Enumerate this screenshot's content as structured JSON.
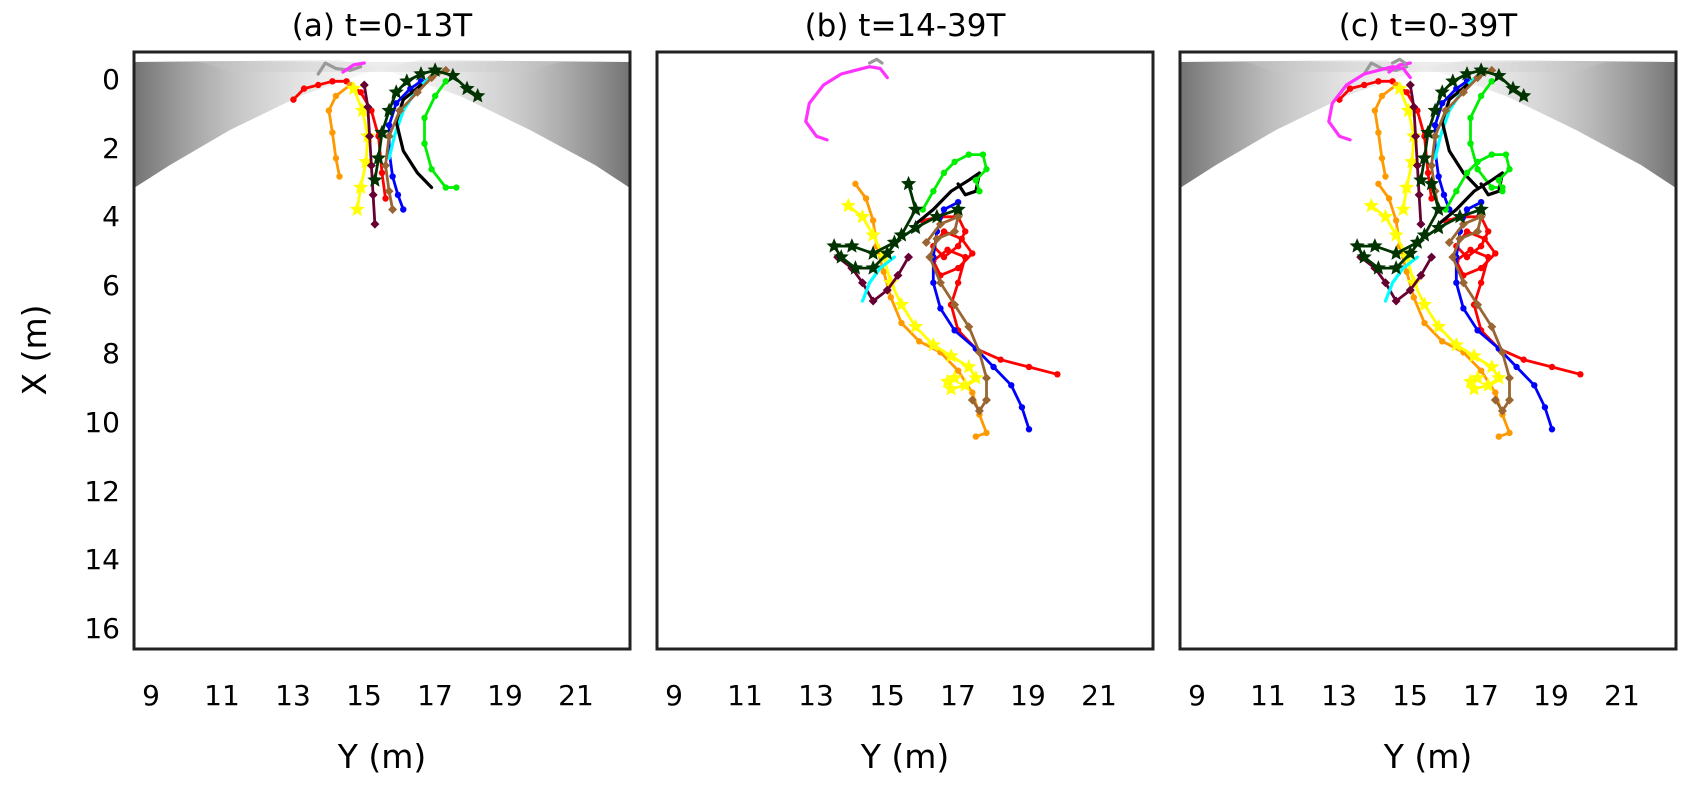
{
  "chart_data": [
    {
      "type": "line",
      "title": "(a) t=0-13T",
      "xlabel": "Y (m)",
      "ylabel": "X (m)",
      "xlim": [
        8.5,
        22.5
      ],
      "ylim": [
        16,
        -0.3
      ],
      "y_inverted": true,
      "xticks": [
        "9",
        "11",
        "13",
        "15",
        "17",
        "19",
        "21"
      ],
      "yticks": [
        "0",
        "2",
        "4",
        "6",
        "8",
        "10",
        "12",
        "14",
        "16"
      ],
      "background": "gray-scale heat map band near X=0-2 m",
      "grid": false,
      "series": [
        {
          "color": "#999999",
          "marker": "none",
          "points": [
            [
              13.7,
              0.3
            ],
            [
              13.9,
              0.0
            ],
            [
              14.2,
              0.15
            ],
            [
              14.6,
              0.2
            ],
            [
              14.9,
              0.1
            ]
          ]
        },
        {
          "color": "#ff33ff",
          "marker": "none",
          "points": [
            [
              14.4,
              0.25
            ],
            [
              14.7,
              0.05
            ],
            [
              15.0,
              0.0
            ]
          ]
        },
        {
          "color": "#ff0000",
          "marker": "circle",
          "points": [
            [
              13.0,
              1.0
            ],
            [
              13.3,
              0.7
            ],
            [
              13.7,
              0.6
            ],
            [
              14.1,
              0.5
            ],
            [
              14.5,
              0.5
            ],
            [
              14.9,
              0.8
            ],
            [
              15.2,
              1.3
            ],
            [
              15.4,
              2.0
            ],
            [
              15.5,
              3.0
            ],
            [
              15.6,
              3.7
            ]
          ]
        },
        {
          "color": "#ff9900",
          "marker": "circle",
          "points": [
            [
              14.6,
              0.6
            ],
            [
              14.2,
              0.9
            ],
            [
              14.0,
              1.3
            ],
            [
              14.1,
              1.9
            ],
            [
              14.2,
              2.6
            ],
            [
              14.3,
              3.1
            ]
          ]
        },
        {
          "color": "#ffff00",
          "marker": "star",
          "points": [
            [
              14.7,
              0.7
            ],
            [
              14.95,
              1.3
            ],
            [
              15.1,
              2.0
            ],
            [
              15.05,
              2.7
            ],
            [
              14.9,
              3.4
            ],
            [
              14.8,
              4.0
            ]
          ]
        },
        {
          "color": "#660033",
          "marker": "diamond",
          "points": [
            [
              15.0,
              0.6
            ],
            [
              15.1,
              1.2
            ],
            [
              15.15,
              2.0
            ],
            [
              15.2,
              2.8
            ],
            [
              15.25,
              3.6
            ],
            [
              15.3,
              4.4
            ]
          ]
        },
        {
          "color": "#0000ff",
          "marker": "circle",
          "points": [
            [
              16.6,
              0.5
            ],
            [
              16.3,
              0.7
            ],
            [
              15.9,
              1.1
            ],
            [
              15.7,
              1.7
            ],
            [
              15.7,
              2.4
            ],
            [
              15.8,
              3.1
            ],
            [
              15.95,
              3.6
            ],
            [
              16.1,
              4.0
            ]
          ]
        },
        {
          "color": "#00ffff",
          "marker": "none",
          "points": [
            [
              16.95,
              0.3
            ],
            [
              16.5,
              0.7
            ],
            [
              16.1,
              1.3
            ],
            [
              15.85,
              2.0
            ],
            [
              15.7,
              2.6
            ]
          ]
        },
        {
          "color": "#000000",
          "marker": "none",
          "points": [
            [
              16.6,
              0.6
            ],
            [
              16.1,
              1.0
            ],
            [
              15.9,
              1.6
            ],
            [
              16.1,
              2.4
            ],
            [
              16.5,
              3.0
            ],
            [
              16.9,
              3.4
            ]
          ]
        },
        {
          "color": "#996633",
          "marker": "diamond",
          "points": [
            [
              17.3,
              0.2
            ],
            [
              16.9,
              0.4
            ],
            [
              16.5,
              0.8
            ],
            [
              16.0,
              1.3
            ],
            [
              15.7,
              2.0
            ],
            [
              15.6,
              2.8
            ],
            [
              15.7,
              3.5
            ],
            [
              15.8,
              4.0
            ]
          ]
        },
        {
          "color": "#00ee00",
          "marker": "circle",
          "points": [
            [
              17.3,
              0.5
            ],
            [
              17.0,
              0.9
            ],
            [
              16.7,
              1.5
            ],
            [
              16.7,
              2.2
            ],
            [
              16.9,
              2.9
            ],
            [
              17.3,
              3.4
            ],
            [
              17.6,
              3.4
            ]
          ]
        },
        {
          "color": "#003300",
          "marker": "star",
          "points": [
            [
              18.2,
              0.9
            ],
            [
              17.9,
              0.7
            ],
            [
              17.5,
              0.35
            ],
            [
              17.0,
              0.2
            ],
            [
              16.6,
              0.3
            ],
            [
              16.2,
              0.5
            ],
            [
              15.9,
              0.8
            ],
            [
              15.7,
              1.3
            ],
            [
              15.5,
              1.9
            ],
            [
              15.4,
              2.6
            ],
            [
              15.3,
              3.2
            ]
          ]
        }
      ]
    },
    {
      "type": "line",
      "title": "(b) t=14-39T",
      "xlabel": "Y (m)",
      "ylabel": "",
      "xlim": [
        8.5,
        22.5
      ],
      "ylim": [
        16,
        -0.3
      ],
      "y_inverted": true,
      "xticks": [
        "9",
        "11",
        "13",
        "15",
        "17",
        "19",
        "21"
      ],
      "yticks": [],
      "grid": false,
      "series": [
        {
          "color": "#999999",
          "marker": "none",
          "points": [
            [
              14.85,
              0.0
            ],
            [
              14.7,
              -0.1
            ],
            [
              14.5,
              0.0
            ]
          ]
        },
        {
          "color": "#ff33ff",
          "marker": "none",
          "points": [
            [
              15.0,
              0.4
            ],
            [
              14.8,
              0.15
            ],
            [
              14.5,
              0.1
            ],
            [
              14.1,
              0.2
            ],
            [
              13.7,
              0.3
            ],
            [
              13.2,
              0.6
            ],
            [
              12.8,
              1.1
            ],
            [
              12.7,
              1.6
            ],
            [
              13.0,
              2.0
            ],
            [
              13.3,
              2.1
            ]
          ]
        },
        {
          "color": "#ff0000",
          "marker": "circle",
          "points": [
            [
              16.0,
              4.3
            ],
            [
              16.5,
              4.2
            ],
            [
              17.0,
              4.2
            ],
            [
              17.2,
              4.6
            ],
            [
              17.0,
              5.0
            ],
            [
              16.6,
              5.3
            ],
            [
              16.3,
              5.0
            ],
            [
              16.6,
              4.6
            ],
            [
              17.1,
              4.8
            ],
            [
              17.4,
              5.2
            ],
            [
              17.0,
              5.6
            ],
            [
              16.5,
              5.8
            ],
            [
              16.3,
              5.4
            ],
            [
              16.7,
              5.1
            ],
            [
              17.2,
              5.3
            ],
            [
              17.0,
              6.0
            ],
            [
              16.8,
              6.6
            ],
            [
              17.0,
              7.3
            ],
            [
              17.5,
              7.8
            ],
            [
              18.2,
              8.1
            ],
            [
              19.0,
              8.3
            ],
            [
              19.8,
              8.5
            ]
          ]
        },
        {
          "color": "#ff9900",
          "marker": "circle",
          "points": [
            [
              14.1,
              3.3
            ],
            [
              14.4,
              3.7
            ],
            [
              14.6,
              4.3
            ],
            [
              14.7,
              5.0
            ],
            [
              14.9,
              5.7
            ],
            [
              15.1,
              6.4
            ],
            [
              15.4,
              7.1
            ],
            [
              15.9,
              7.6
            ],
            [
              16.5,
              7.9
            ],
            [
              17.0,
              8.4
            ],
            [
              17.4,
              9.0
            ],
            [
              17.6,
              9.6
            ],
            [
              17.8,
              10.1
            ],
            [
              17.5,
              10.2
            ]
          ]
        },
        {
          "color": "#ffff00",
          "marker": "star",
          "points": [
            [
              13.9,
              3.9
            ],
            [
              14.3,
              4.2
            ],
            [
              14.6,
              4.7
            ],
            [
              14.9,
              5.3
            ],
            [
              15.1,
              6.0
            ],
            [
              15.4,
              6.6
            ],
            [
              15.8,
              7.2
            ],
            [
              16.3,
              7.7
            ],
            [
              16.8,
              8.0
            ],
            [
              17.3,
              8.3
            ],
            [
              17.5,
              8.6
            ],
            [
              17.2,
              8.8
            ],
            [
              16.8,
              8.9
            ],
            [
              16.7,
              8.7
            ],
            [
              16.9,
              8.6
            ]
          ]
        },
        {
          "color": "#660033",
          "marker": "diamond",
          "points": [
            [
              13.6,
              5.3
            ],
            [
              14.0,
              5.6
            ],
            [
              14.3,
              6.0
            ],
            [
              14.6,
              6.5
            ],
            [
              15.0,
              6.2
            ],
            [
              15.3,
              5.8
            ],
            [
              15.6,
              5.3
            ]
          ]
        },
        {
          "color": "#0000ff",
          "marker": "circle",
          "points": [
            [
              17.0,
              3.8
            ],
            [
              16.6,
              4.0
            ],
            [
              16.4,
              4.6
            ],
            [
              16.3,
              5.3
            ],
            [
              16.3,
              6.0
            ],
            [
              16.5,
              6.7
            ],
            [
              16.9,
              7.3
            ],
            [
              17.5,
              7.8
            ],
            [
              18.0,
              8.3
            ],
            [
              18.5,
              8.8
            ],
            [
              18.8,
              9.4
            ],
            [
              19.0,
              10.0
            ]
          ]
        },
        {
          "color": "#00ffff",
          "marker": "none",
          "points": [
            [
              14.3,
              6.5
            ],
            [
              14.5,
              6.0
            ],
            [
              14.8,
              5.6
            ],
            [
              15.2,
              5.3
            ]
          ]
        },
        {
          "color": "#000000",
          "marker": "none",
          "points": [
            [
              15.8,
              4.4
            ],
            [
              16.3,
              4.0
            ],
            [
              16.8,
              3.5
            ],
            [
              17.3,
              3.2
            ],
            [
              17.6,
              3.0
            ],
            [
              17.5,
              3.5
            ],
            [
              17.2,
              3.6
            ],
            [
              17.0,
              3.3
            ]
          ]
        },
        {
          "color": "#996633",
          "marker": "diamond",
          "points": [
            [
              16.1,
              4.9
            ],
            [
              16.5,
              4.4
            ],
            [
              17.0,
              4.2
            ],
            [
              16.9,
              4.6
            ],
            [
              16.4,
              4.8
            ],
            [
              16.2,
              5.3
            ],
            [
              16.5,
              6.0
            ],
            [
              16.9,
              6.6
            ],
            [
              17.3,
              7.2
            ],
            [
              17.6,
              7.9
            ],
            [
              17.8,
              8.6
            ],
            [
              17.8,
              9.2
            ],
            [
              17.6,
              9.5
            ],
            [
              17.4,
              9.2
            ]
          ]
        },
        {
          "color": "#00ee00",
          "marker": "circle",
          "points": [
            [
              16.0,
              4.0
            ],
            [
              16.3,
              3.5
            ],
            [
              16.6,
              3.0
            ],
            [
              16.9,
              2.7
            ],
            [
              17.3,
              2.5
            ],
            [
              17.7,
              2.5
            ],
            [
              17.8,
              2.9
            ],
            [
              17.5,
              3.2
            ],
            [
              17.6,
              3.5
            ]
          ]
        },
        {
          "color": "#003300",
          "marker": "star",
          "points": [
            [
              15.6,
              3.3
            ],
            [
              15.8,
              4.0
            ],
            [
              15.4,
              4.7
            ],
            [
              15.0,
              5.2
            ],
            [
              14.6,
              5.6
            ],
            [
              14.1,
              5.6
            ],
            [
              13.7,
              5.3
            ],
            [
              13.5,
              5.0
            ],
            [
              14.0,
              5.0
            ],
            [
              14.6,
              5.2
            ],
            [
              15.2,
              4.9
            ],
            [
              15.8,
              4.5
            ],
            [
              16.4,
              4.2
            ],
            [
              17.0,
              4.0
            ]
          ]
        }
      ]
    },
    {
      "type": "line",
      "title": "(c) t=0-39T",
      "xlabel": "Y (m)",
      "ylabel": "",
      "xlim": [
        8.5,
        22.5
      ],
      "ylim": [
        16,
        -0.3
      ],
      "y_inverted": true,
      "xticks": [
        "9",
        "11",
        "13",
        "15",
        "17",
        "19",
        "21"
      ],
      "yticks": [],
      "background": "gray-scale heat map band near X=0-2 m",
      "grid": false,
      "series": "union of panels (a) and (b)"
    }
  ]
}
